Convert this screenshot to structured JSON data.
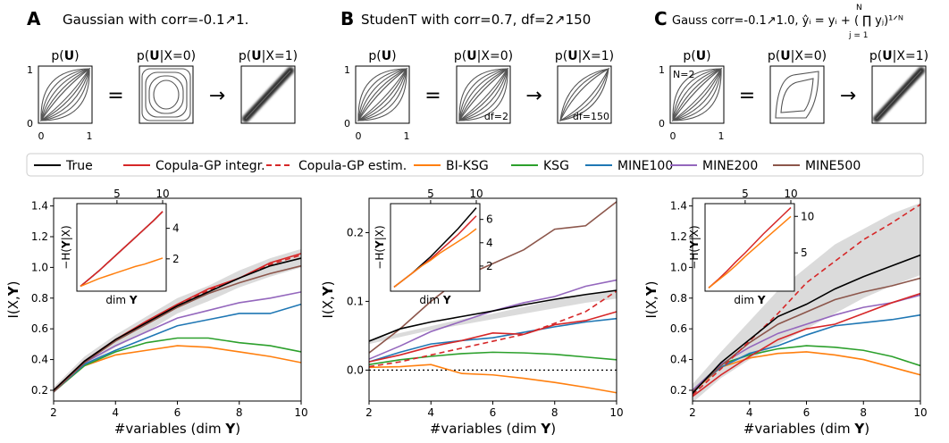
{
  "panels": [
    {
      "letter": "A",
      "title": "Gaussian with corr=-0.1↗1."
    },
    {
      "letter": "B",
      "title": "StudenT with corr=0.7, df=2↗150"
    },
    {
      "letter": "C",
      "title": "Gauss corr=-0.1↗1.0, ŷᵢ = yᵢ + ( ∏ yⱼ)¹ᐟᴺ",
      "prod_top": "N",
      "prod_bottom": "j = 1"
    }
  ],
  "copula_titles": [
    "p(U)",
    "p(U|X=0)",
    "p(U|X=1)"
  ],
  "copula_ticks": {
    "x": [
      "0",
      "1"
    ],
    "y": [
      "0",
      "1"
    ]
  },
  "copula_notes": {
    "n2": "N=2",
    "df2": "df=2",
    "df150": "df=150"
  },
  "eq_symbol": "=",
  "arrow_symbol": "→",
  "legend": [
    {
      "name": "True",
      "color": "#000000",
      "dash": false
    },
    {
      "name": "Copula-GP integr.",
      "color": "#d62728",
      "dash": false
    },
    {
      "name": "Copula-GP estim.",
      "color": "#d62728",
      "dash": true
    },
    {
      "name": "BI-KSG",
      "color": "#ff7f0e",
      "dash": false
    },
    {
      "name": "KSG",
      "color": "#2ca02c",
      "dash": false
    },
    {
      "name": "MINE100",
      "color": "#1f77b4",
      "dash": false
    },
    {
      "name": "MINE200",
      "color": "#9467bd",
      "dash": false
    },
    {
      "name": "MINE500",
      "color": "#8c564b",
      "dash": false
    }
  ],
  "axis_labels": {
    "x": "#variables (dim Y)",
    "y": "I(X,Y)",
    "inset_x": "dim Y",
    "inset_y": "−H(Y|X)"
  },
  "chart_data": [
    {
      "type": "line",
      "panel": "A",
      "xlabel": "#variables (dim Y)",
      "ylabel": "I(X,Y)",
      "xlim": [
        2,
        10
      ],
      "ylim": [
        0.13,
        1.45
      ],
      "xticks": [
        2,
        4,
        6,
        8,
        10
      ],
      "yticks": [
        0.2,
        0.4,
        0.6,
        0.8,
        1.0,
        1.2,
        1.4
      ],
      "ytick_labels": [
        "0.2",
        "0.4",
        "0.6",
        "0.8",
        "1.0",
        "1.2",
        "1.4"
      ],
      "x": [
        2,
        3,
        4,
        5,
        6,
        7,
        8,
        9,
        10
      ],
      "band": {
        "lower": [
          0.18,
          0.36,
          0.48,
          0.58,
          0.7,
          0.78,
          0.87,
          0.94,
          1.0
        ],
        "upper": [
          0.22,
          0.42,
          0.56,
          0.68,
          0.8,
          0.88,
          0.98,
          1.06,
          1.12
        ]
      },
      "series": [
        {
          "name": "True",
          "values": [
            0.2,
            0.39,
            0.53,
            0.64,
            0.75,
            0.84,
            0.93,
            1.01,
            1.06
          ]
        },
        {
          "name": "Copula-GP integr.",
          "values": [
            0.2,
            0.39,
            0.53,
            0.65,
            0.76,
            0.86,
            0.93,
            1.03,
            1.09
          ]
        },
        {
          "name": "Copula-GP estim.",
          "values": [
            0.2,
            0.39,
            0.53,
            0.64,
            0.75,
            0.85,
            0.93,
            1.02,
            1.08
          ]
        },
        {
          "name": "BI-KSG",
          "values": [
            0.19,
            0.36,
            0.43,
            0.46,
            0.49,
            0.48,
            0.45,
            0.42,
            0.38
          ]
        },
        {
          "name": "KSG",
          "values": [
            0.19,
            0.36,
            0.45,
            0.51,
            0.54,
            0.54,
            0.51,
            0.49,
            0.45
          ]
        },
        {
          "name": "MINE100",
          "values": [
            0.19,
            0.37,
            0.46,
            0.54,
            0.62,
            0.66,
            0.7,
            0.7,
            0.76
          ]
        },
        {
          "name": "MINE200",
          "values": [
            0.19,
            0.38,
            0.49,
            0.58,
            0.67,
            0.72,
            0.77,
            0.8,
            0.84
          ]
        },
        {
          "name": "MINE500",
          "values": [
            0.19,
            0.38,
            0.52,
            0.63,
            0.74,
            0.83,
            0.9,
            0.96,
            1.01
          ]
        }
      ],
      "inset": {
        "xlim": [
          1,
          10
        ],
        "ylim": [
          0,
          5.5
        ],
        "xticks": [
          5,
          10
        ],
        "yticks": [
          2,
          4
        ],
        "x": [
          1,
          2,
          3,
          4,
          5,
          6,
          7,
          8,
          9,
          10
        ],
        "series": [
          {
            "name": "True",
            "values": [
              0.2,
              0.7,
              1.2,
              1.75,
              2.3,
              2.85,
              3.4,
              3.95,
              4.5,
              5.1
            ]
          },
          {
            "name": "Copula-GP integr.",
            "values": [
              0.2,
              0.7,
              1.2,
              1.75,
              2.3,
              2.85,
              3.4,
              3.95,
              4.5,
              5.1
            ]
          },
          {
            "name": "Copula-GP estim.",
            "values": [
              0.2,
              0.7,
              1.2,
              1.75,
              2.3,
              2.85,
              3.4,
              3.95,
              4.5,
              5.1
            ]
          },
          {
            "name": "BI-KSG",
            "values": [
              0.2,
              0.45,
              0.7,
              0.9,
              1.1,
              1.3,
              1.5,
              1.65,
              1.85,
              2.05
            ]
          }
        ]
      }
    },
    {
      "type": "line",
      "panel": "B",
      "xlabel": "#variables (dim Y)",
      "ylabel": "I(X,Y)",
      "xlim": [
        2,
        10
      ],
      "ylim": [
        -0.045,
        0.25
      ],
      "xticks": [
        2,
        4,
        6,
        8,
        10
      ],
      "yticks": [
        0.0,
        0.1,
        0.2
      ],
      "ytick_labels": [
        "0.0",
        "0.1",
        "0.2"
      ],
      "zero_line": true,
      "x": [
        2,
        3,
        4,
        5,
        6,
        7,
        8,
        9,
        10
      ],
      "band": {
        "lower": [
          0.038,
          0.048,
          0.058,
          0.066,
          0.074,
          0.082,
          0.09,
          0.098,
          0.104
        ],
        "upper": [
          0.044,
          0.054,
          0.064,
          0.074,
          0.082,
          0.092,
          0.102,
          0.11,
          0.118
        ]
      },
      "series": [
        {
          "name": "True",
          "values": [
            0.042,
            0.06,
            0.07,
            0.078,
            0.086,
            0.095,
            0.103,
            0.11,
            0.116
          ]
        },
        {
          "name": "Copula-GP integr.",
          "values": [
            0.012,
            0.022,
            0.034,
            0.043,
            0.054,
            0.052,
            0.066,
            0.072,
            0.085
          ]
        },
        {
          "name": "Copula-GP estim.",
          "values": [
            0.005,
            0.012,
            0.022,
            0.032,
            0.042,
            0.052,
            0.068,
            0.085,
            0.115
          ]
        },
        {
          "name": "BI-KSG",
          "values": [
            0.004,
            0.005,
            0.008,
            -0.005,
            -0.007,
            -0.012,
            -0.018,
            -0.025,
            -0.033
          ]
        },
        {
          "name": "KSG",
          "values": [
            0.008,
            0.015,
            0.02,
            0.024,
            0.026,
            0.025,
            0.023,
            0.019,
            0.015
          ]
        },
        {
          "name": "MINE100",
          "values": [
            0.012,
            0.026,
            0.038,
            0.043,
            0.047,
            0.055,
            0.063,
            0.07,
            0.075
          ]
        },
        {
          "name": "MINE200",
          "values": [
            0.016,
            0.035,
            0.056,
            0.071,
            0.086,
            0.098,
            0.107,
            0.122,
            0.131
          ]
        },
        {
          "name": "MINE500",
          "values": [
            0.025,
            0.06,
            0.1,
            0.135,
            0.155,
            0.175,
            0.205,
            0.21,
            0.245
          ]
        }
      ],
      "inset": {
        "xlim": [
          1,
          10
        ],
        "ylim": [
          0,
          7.2
        ],
        "xticks": [
          5,
          10
        ],
        "yticks": [
          2,
          4,
          6
        ],
        "x": [
          1,
          2,
          3,
          4,
          5,
          6,
          7,
          8,
          9,
          10
        ],
        "series": [
          {
            "name": "True",
            "values": [
              0.2,
              0.8,
              1.4,
              2.1,
              2.8,
              3.6,
              4.4,
              5.2,
              6.1,
              7.0
            ]
          },
          {
            "name": "Copula-GP integr.",
            "values": [
              0.2,
              0.8,
              1.4,
              2.0,
              2.6,
              3.3,
              4.0,
              4.7,
              5.5,
              6.3
            ]
          },
          {
            "name": "BI-KSG",
            "values": [
              0.2,
              0.8,
              1.4,
              2.0,
              2.5,
              3.1,
              3.6,
              4.1,
              4.6,
              5.2
            ]
          }
        ]
      }
    },
    {
      "type": "line",
      "panel": "C",
      "xlabel": "#variables (dim Y)",
      "ylabel": "I(X,Y)",
      "xlim": [
        2,
        10
      ],
      "ylim": [
        0.13,
        1.45
      ],
      "xticks": [
        2,
        4,
        6,
        8,
        10
      ],
      "yticks": [
        0.2,
        0.4,
        0.6,
        0.8,
        1.0,
        1.2,
        1.4
      ],
      "ytick_labels": [
        "0.2",
        "0.4",
        "0.6",
        "0.8",
        "1.0",
        "1.2",
        "1.4"
      ],
      "x": [
        2,
        3,
        4,
        5,
        6,
        7,
        8,
        9,
        10
      ],
      "band": {
        "lower": [
          0.12,
          0.28,
          0.4,
          0.5,
          0.6,
          0.7,
          0.8,
          0.88,
          0.95
        ],
        "upper": [
          0.24,
          0.45,
          0.65,
          0.85,
          1.0,
          1.15,
          1.25,
          1.35,
          1.42
        ]
      },
      "series": [
        {
          "name": "True",
          "values": [
            0.18,
            0.38,
            0.53,
            0.68,
            0.76,
            0.86,
            0.94,
            1.01,
            1.08
          ]
        },
        {
          "name": "Copula-GP integr.",
          "values": [
            0.16,
            0.3,
            0.42,
            0.53,
            0.6,
            0.63,
            0.7,
            0.77,
            0.83
          ]
        },
        {
          "name": "Copula-GP estim.",
          "values": [
            0.17,
            0.34,
            0.52,
            0.7,
            0.9,
            1.04,
            1.18,
            1.29,
            1.41
          ]
        },
        {
          "name": "BI-KSG",
          "values": [
            0.19,
            0.35,
            0.41,
            0.44,
            0.45,
            0.43,
            0.4,
            0.35,
            0.3
          ]
        },
        {
          "name": "KSG",
          "values": [
            0.2,
            0.37,
            0.43,
            0.47,
            0.49,
            0.48,
            0.46,
            0.42,
            0.36
          ]
        },
        {
          "name": "MINE100",
          "values": [
            0.2,
            0.35,
            0.44,
            0.49,
            0.56,
            0.62,
            0.64,
            0.66,
            0.69
          ]
        },
        {
          "name": "MINE200",
          "values": [
            0.2,
            0.37,
            0.48,
            0.57,
            0.63,
            0.69,
            0.74,
            0.77,
            0.82
          ]
        },
        {
          "name": "MINE500",
          "values": [
            0.19,
            0.36,
            0.51,
            0.63,
            0.71,
            0.79,
            0.84,
            0.88,
            0.93
          ]
        }
      ],
      "inset": {
        "xlim": [
          1,
          10
        ],
        "ylim": [
          0,
          11.5
        ],
        "xticks": [
          5,
          10
        ],
        "yticks": [
          5,
          10
        ],
        "x": [
          1,
          2,
          3,
          4,
          5,
          6,
          7,
          8,
          9,
          10
        ],
        "series": [
          {
            "name": "Copula-GP integr.",
            "values": [
              0.2,
              1.3,
              2.5,
              3.8,
              5.0,
              6.3,
              7.6,
              8.8,
              10.0,
              11.2
            ]
          },
          {
            "name": "BI-KSG",
            "values": [
              0.2,
              1.2,
              2.2,
              3.3,
              4.5,
              5.6,
              6.7,
              7.8,
              8.9,
              10.0
            ]
          }
        ]
      }
    }
  ]
}
